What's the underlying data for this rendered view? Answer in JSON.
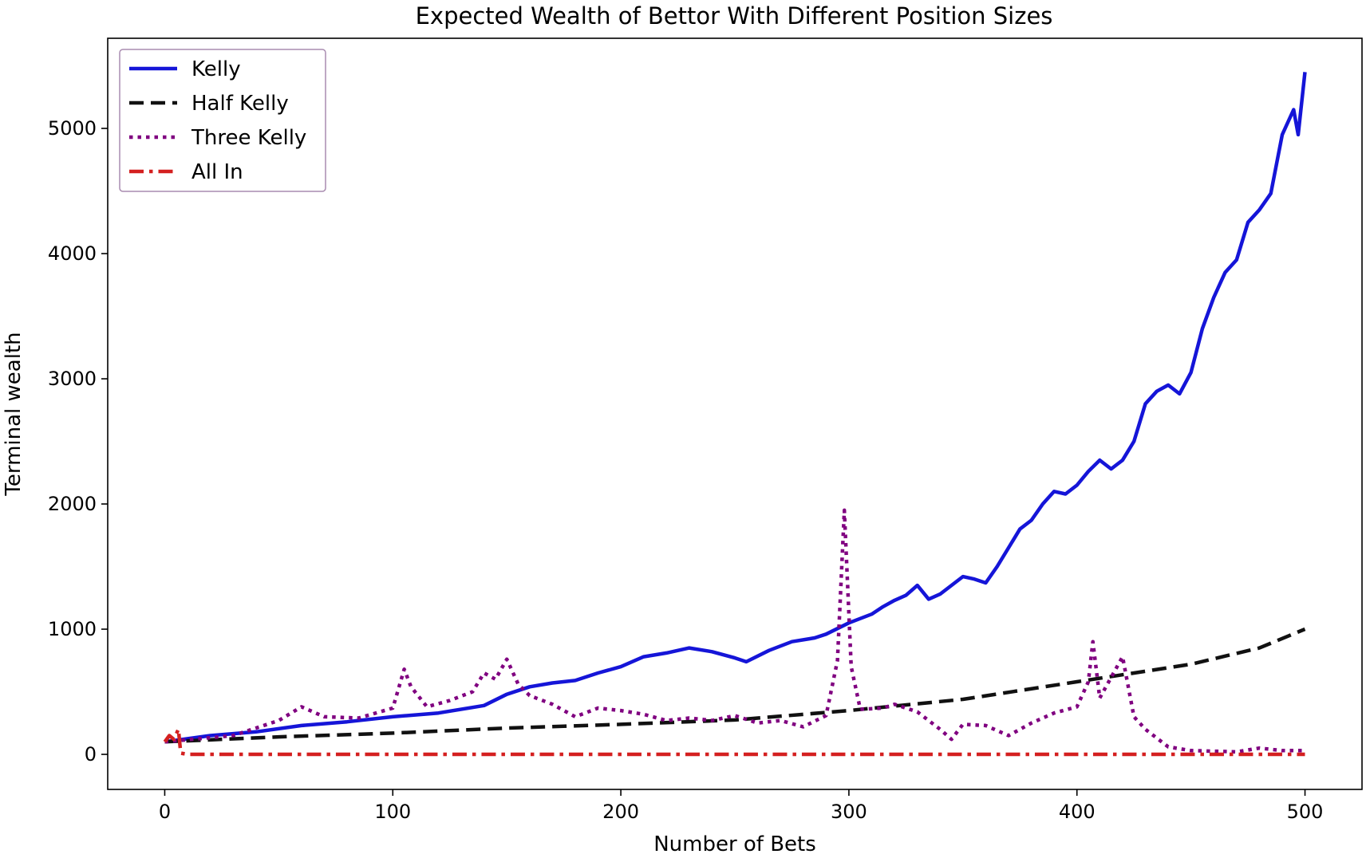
{
  "chart_data": {
    "type": "line",
    "title": "Expected Wealth of Bettor With Different Position Sizes",
    "xlabel": "Number of Bets",
    "ylabel": "Terminal wealth",
    "xlim": [
      -25,
      525
    ],
    "ylim": [
      -280,
      5720
    ],
    "xticks": [
      0,
      100,
      200,
      300,
      400,
      500
    ],
    "yticks": [
      0,
      1000,
      2000,
      3000,
      4000,
      5000
    ],
    "grid": false,
    "legend_position": "upper-left",
    "series": [
      {
        "name": "Kelly",
        "color": "#1515d8",
        "style": "solid",
        "points": [
          [
            0,
            100
          ],
          [
            20,
            150
          ],
          [
            40,
            180
          ],
          [
            60,
            230
          ],
          [
            80,
            260
          ],
          [
            100,
            300
          ],
          [
            120,
            330
          ],
          [
            140,
            390
          ],
          [
            150,
            480
          ],
          [
            160,
            540
          ],
          [
            170,
            570
          ],
          [
            180,
            590
          ],
          [
            190,
            650
          ],
          [
            200,
            700
          ],
          [
            210,
            780
          ],
          [
            220,
            810
          ],
          [
            230,
            850
          ],
          [
            240,
            820
          ],
          [
            250,
            770
          ],
          [
            255,
            740
          ],
          [
            265,
            830
          ],
          [
            275,
            900
          ],
          [
            285,
            930
          ],
          [
            290,
            960
          ],
          [
            300,
            1050
          ],
          [
            310,
            1120
          ],
          [
            315,
            1180
          ],
          [
            320,
            1230
          ],
          [
            325,
            1270
          ],
          [
            330,
            1350
          ],
          [
            335,
            1240
          ],
          [
            340,
            1280
          ],
          [
            345,
            1350
          ],
          [
            350,
            1420
          ],
          [
            355,
            1400
          ],
          [
            360,
            1370
          ],
          [
            365,
            1500
          ],
          [
            370,
            1650
          ],
          [
            375,
            1800
          ],
          [
            380,
            1870
          ],
          [
            385,
            2000
          ],
          [
            390,
            2100
          ],
          [
            395,
            2080
          ],
          [
            400,
            2150
          ],
          [
            405,
            2260
          ],
          [
            410,
            2350
          ],
          [
            415,
            2280
          ],
          [
            420,
            2350
          ],
          [
            425,
            2500
          ],
          [
            430,
            2800
          ],
          [
            435,
            2900
          ],
          [
            440,
            2950
          ],
          [
            445,
            2880
          ],
          [
            450,
            3050
          ],
          [
            455,
            3400
          ],
          [
            460,
            3650
          ],
          [
            465,
            3850
          ],
          [
            470,
            3950
          ],
          [
            475,
            4250
          ],
          [
            480,
            4350
          ],
          [
            485,
            4480
          ],
          [
            490,
            4950
          ],
          [
            495,
            5150
          ],
          [
            497,
            4950
          ],
          [
            500,
            5450
          ]
        ]
      },
      {
        "name": "Half Kelly",
        "color": "#111111",
        "style": "dashed",
        "points": [
          [
            0,
            100
          ],
          [
            50,
            140
          ],
          [
            100,
            170
          ],
          [
            150,
            210
          ],
          [
            200,
            240
          ],
          [
            250,
            275
          ],
          [
            300,
            350
          ],
          [
            350,
            440
          ],
          [
            400,
            580
          ],
          [
            450,
            720
          ],
          [
            480,
            850
          ],
          [
            500,
            1000
          ]
        ]
      },
      {
        "name": "Three Kelly",
        "color": "#800080",
        "style": "dotted",
        "points": [
          [
            0,
            100
          ],
          [
            30,
            150
          ],
          [
            50,
            270
          ],
          [
            60,
            380
          ],
          [
            70,
            300
          ],
          [
            85,
            290
          ],
          [
            100,
            370
          ],
          [
            105,
            680
          ],
          [
            108,
            540
          ],
          [
            115,
            380
          ],
          [
            125,
            430
          ],
          [
            135,
            500
          ],
          [
            140,
            650
          ],
          [
            145,
            600
          ],
          [
            150,
            760
          ],
          [
            155,
            560
          ],
          [
            160,
            470
          ],
          [
            170,
            400
          ],
          [
            180,
            300
          ],
          [
            190,
            370
          ],
          [
            200,
            350
          ],
          [
            210,
            320
          ],
          [
            220,
            270
          ],
          [
            230,
            290
          ],
          [
            240,
            270
          ],
          [
            250,
            310
          ],
          [
            260,
            250
          ],
          [
            270,
            270
          ],
          [
            280,
            220
          ],
          [
            290,
            310
          ],
          [
            295,
            750
          ],
          [
            298,
            1950
          ],
          [
            301,
            700
          ],
          [
            305,
            360
          ],
          [
            315,
            370
          ],
          [
            320,
            400
          ],
          [
            330,
            340
          ],
          [
            340,
            200
          ],
          [
            345,
            120
          ],
          [
            350,
            240
          ],
          [
            360,
            230
          ],
          [
            370,
            150
          ],
          [
            380,
            250
          ],
          [
            390,
            330
          ],
          [
            400,
            380
          ],
          [
            405,
            580
          ],
          [
            407,
            900
          ],
          [
            410,
            450
          ],
          [
            420,
            780
          ],
          [
            425,
            300
          ],
          [
            430,
            200
          ],
          [
            440,
            60
          ],
          [
            450,
            30
          ],
          [
            470,
            20
          ],
          [
            480,
            50
          ],
          [
            490,
            30
          ],
          [
            500,
            30
          ]
        ]
      },
      {
        "name": "All In",
        "color": "#d42020",
        "style": "dashdot",
        "points": [
          [
            0,
            100
          ],
          [
            2,
            150
          ],
          [
            4,
            120
          ],
          [
            6,
            200
          ],
          [
            7,
            10
          ],
          [
            10,
            0
          ],
          [
            500,
            0
          ]
        ]
      }
    ]
  }
}
